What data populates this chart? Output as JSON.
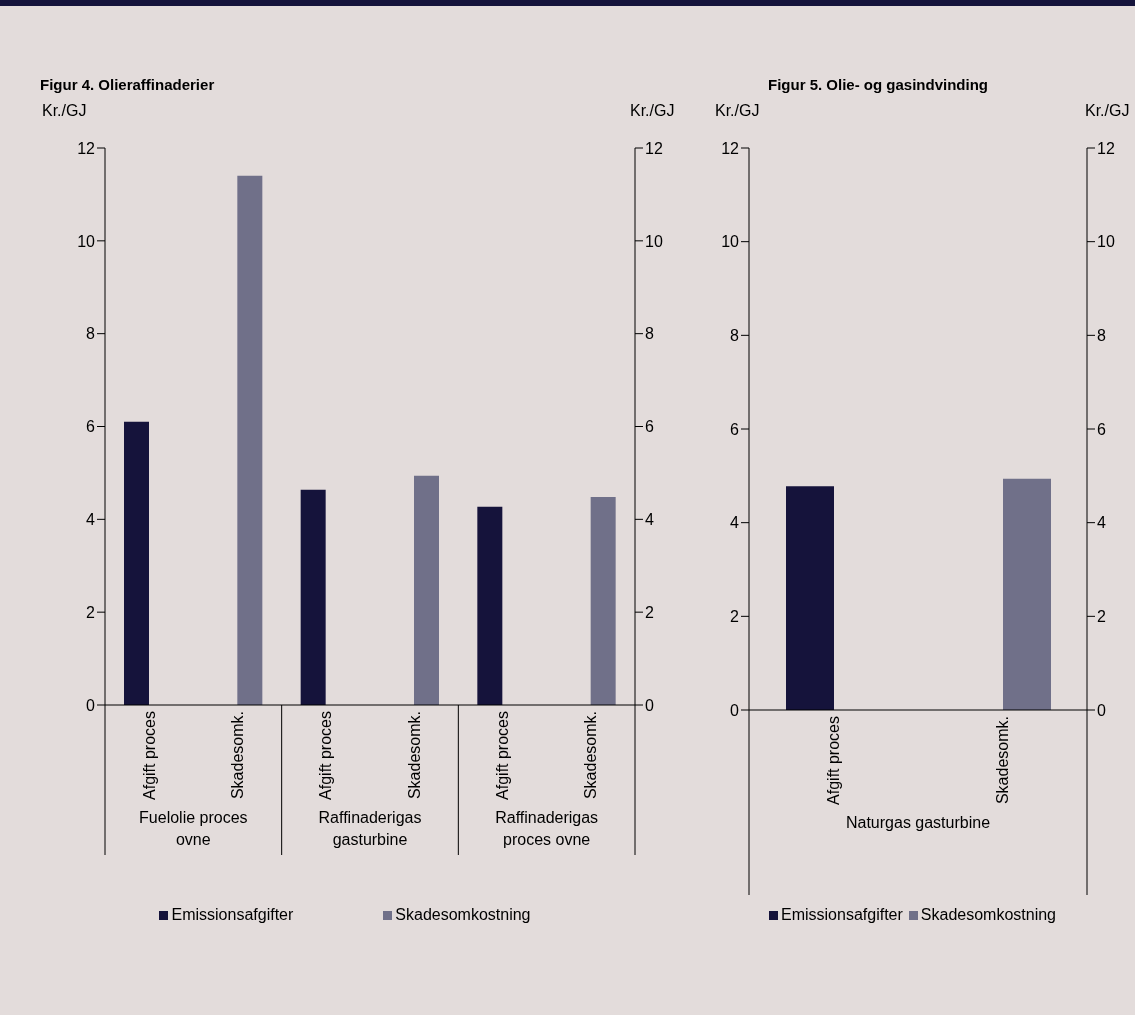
{
  "chart_data": [
    {
      "type": "bar",
      "title": "Figur 4. Olieraffinaderier",
      "ylabel": "Kr./GJ",
      "y2label": "Kr./GJ",
      "categories": [
        "Afgift proces",
        "Skadesomk.",
        "Afgift proces",
        "Skadesomk.",
        "Afgift proces",
        "Skadesomk."
      ],
      "annotations": [
        "Fuelolie proces ovne",
        "Raffinaderigas gasturbine",
        "Raffinaderigas proces ovne"
      ],
      "series": [
        {
          "name": "Emissionsafgifter",
          "color": "#15133b",
          "values": [
            6.1,
            null,
            4.64,
            null,
            4.27,
            null
          ]
        },
        {
          "name": "Skadesomkostning",
          "color": "#707089",
          "values": [
            null,
            11.4,
            null,
            4.94,
            null,
            4.48
          ]
        }
      ],
      "ylim": [
        0,
        12
      ],
      "yticks": [
        0,
        2,
        4,
        6,
        8,
        10,
        12
      ],
      "y2lim": [
        0,
        12
      ],
      "y2ticks": [
        0,
        2,
        4,
        6,
        8,
        10,
        12
      ],
      "legend": "bottom"
    },
    {
      "type": "bar",
      "title": "Figur 5. Olie- og gasindvinding",
      "ylabel": "Kr./GJ",
      "y2label": "Kr./GJ",
      "categories": [
        "Afgift proces",
        "Skadesomk."
      ],
      "annotations": [
        "Naturgas gasturbine"
      ],
      "series": [
        {
          "name": "Emissionsafgifter",
          "color": "#15133b",
          "values": [
            4.78,
            null
          ]
        },
        {
          "name": "Skadesomkostning",
          "color": "#707089",
          "values": [
            null,
            4.94
          ]
        }
      ],
      "ylim": [
        0,
        12
      ],
      "yticks": [
        0,
        2,
        4,
        6,
        8,
        10,
        12
      ],
      "y2lim": [
        0,
        12
      ],
      "y2ticks": [
        0,
        2,
        4,
        6,
        8,
        10,
        12
      ],
      "legend": "bottom"
    }
  ]
}
